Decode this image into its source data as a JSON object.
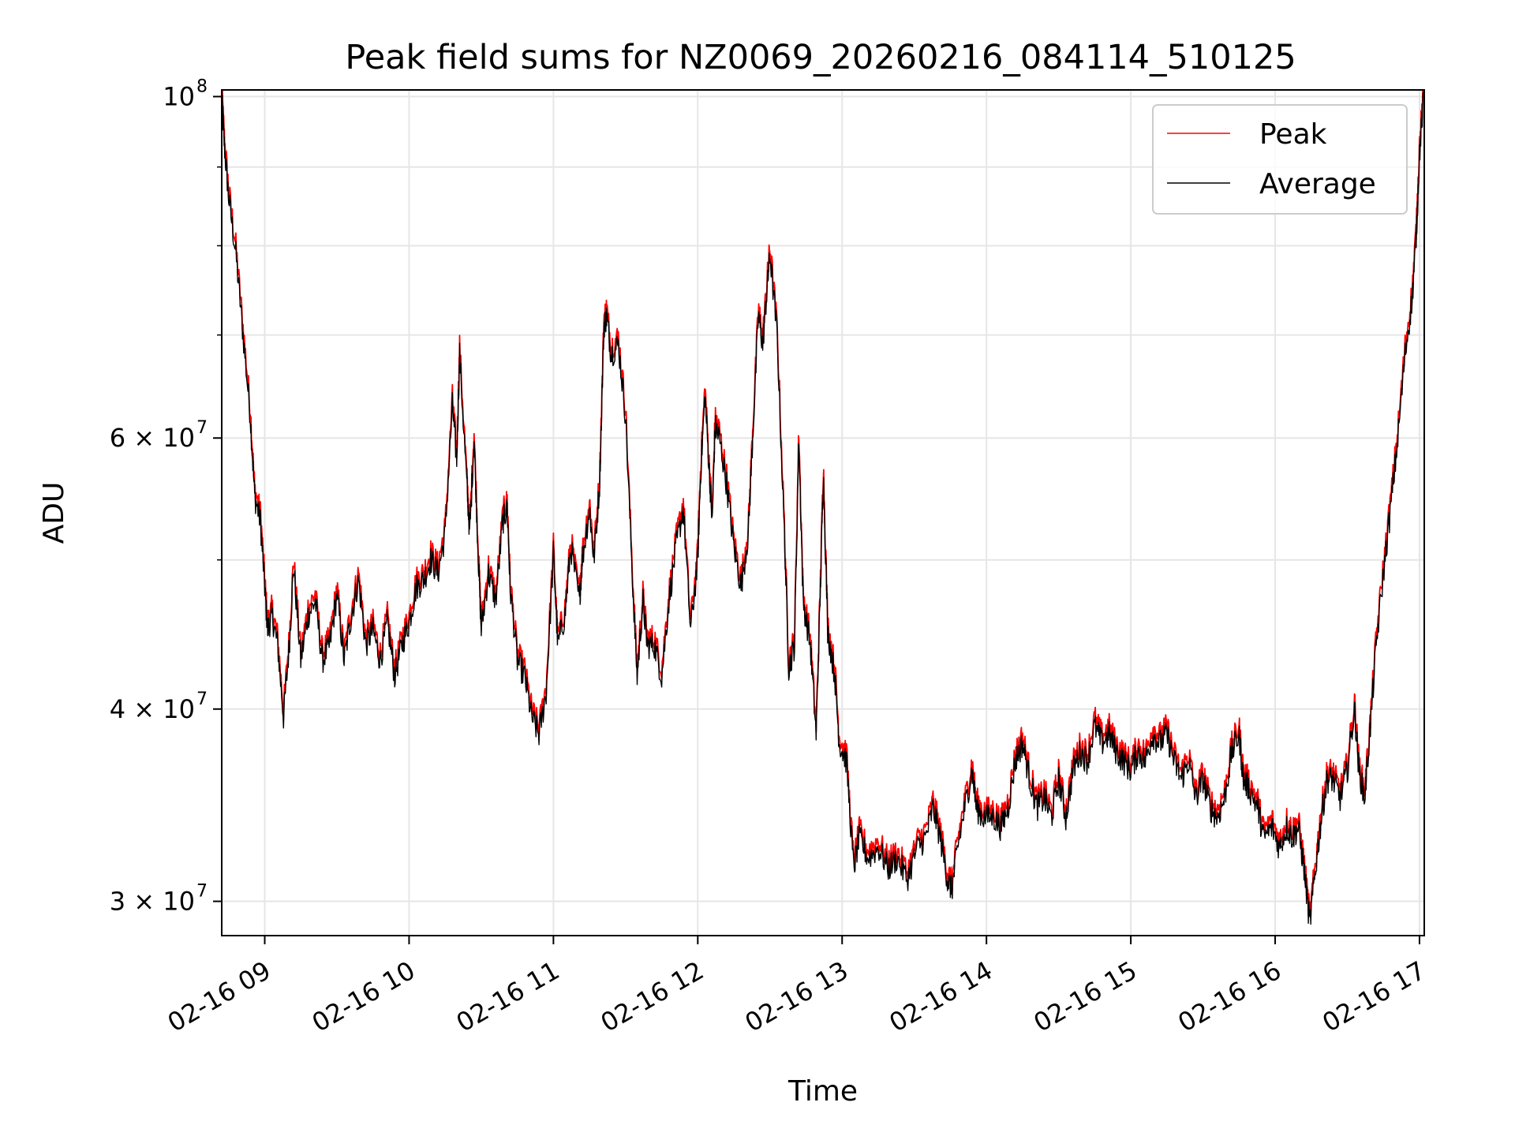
{
  "chart_data": {
    "type": "line",
    "title": "Peak field sums for NZ0069_20260216_084114_510125",
    "xlabel": "Time",
    "ylabel": "ADU",
    "yscale": "log",
    "ylim": [
      28500000,
      101000000
    ],
    "xlim_hours": [
      8.702,
      17.033
    ],
    "grid": true,
    "legend_position": "upper right",
    "x_ticks": [
      {
        "hour": 9,
        "label": "02-16 09"
      },
      {
        "hour": 10,
        "label": "02-16 10"
      },
      {
        "hour": 11,
        "label": "02-16 11"
      },
      {
        "hour": 12,
        "label": "02-16 12"
      },
      {
        "hour": 13,
        "label": "02-16 13"
      },
      {
        "hour": 14,
        "label": "02-16 14"
      },
      {
        "hour": 15,
        "label": "02-16 15"
      },
      {
        "hour": 16,
        "label": "02-16 16"
      },
      {
        "hour": 17,
        "label": "02-16 17"
      }
    ],
    "y_major_ticks": [
      {
        "value": 100000000,
        "base": "10",
        "exp": "8"
      },
      {
        "value": 60000000,
        "base": "6 × 10",
        "exp": "7"
      },
      {
        "value": 40000000,
        "base": "4 × 10",
        "exp": "7"
      },
      {
        "value": 30000000,
        "base": "3 × 10",
        "exp": "7"
      }
    ],
    "y_minor_ticks": [
      90000000,
      80000000,
      70000000,
      50000000
    ],
    "series": [
      {
        "name": "Peak",
        "color": "#ff0000",
        "offset_factor": 1.012
      },
      {
        "name": "Average",
        "color": "#000000",
        "offset_factor": 1.0
      }
    ],
    "average_anchor_points": [
      [
        8.702,
        100000000
      ],
      [
        8.72,
        93000000
      ],
      [
        8.75,
        86000000
      ],
      [
        8.8,
        79000000
      ],
      [
        8.85,
        70000000
      ],
      [
        8.9,
        62000000
      ],
      [
        8.93,
        55000000
      ],
      [
        8.97,
        53000000
      ],
      [
        9.0,
        48000000
      ],
      [
        9.02,
        45000000
      ],
      [
        9.05,
        46000000
      ],
      [
        9.09,
        44000000
      ],
      [
        9.13,
        39500000
      ],
      [
        9.17,
        44000000
      ],
      [
        9.2,
        49500000
      ],
      [
        9.25,
        43000000
      ],
      [
        9.3,
        46000000
      ],
      [
        9.35,
        47000000
      ],
      [
        9.4,
        43000000
      ],
      [
        9.45,
        44000000
      ],
      [
        9.5,
        47500000
      ],
      [
        9.55,
        43000000
      ],
      [
        9.6,
        46000000
      ],
      [
        9.65,
        48500000
      ],
      [
        9.7,
        44000000
      ],
      [
        9.75,
        45000000
      ],
      [
        9.8,
        43000000
      ],
      [
        9.85,
        45500000
      ],
      [
        9.9,
        42000000
      ],
      [
        9.95,
        44000000
      ],
      [
        10.0,
        45500000
      ],
      [
        10.05,
        48000000
      ],
      [
        10.1,
        48500000
      ],
      [
        10.15,
        50000000
      ],
      [
        10.2,
        49000000
      ],
      [
        10.25,
        52000000
      ],
      [
        10.3,
        63000000
      ],
      [
        10.33,
        58000000
      ],
      [
        10.35,
        68000000
      ],
      [
        10.4,
        56000000
      ],
      [
        10.42,
        52000000
      ],
      [
        10.45,
        60000000
      ],
      [
        10.48,
        50000000
      ],
      [
        10.5,
        45000000
      ],
      [
        10.55,
        49000000
      ],
      [
        10.6,
        47000000
      ],
      [
        10.65,
        53000000
      ],
      [
        10.68,
        54000000
      ],
      [
        10.7,
        48000000
      ],
      [
        10.75,
        43000000
      ],
      [
        10.8,
        42000000
      ],
      [
        10.85,
        39500000
      ],
      [
        10.9,
        38500000
      ],
      [
        10.95,
        41000000
      ],
      [
        11.0,
        50500000
      ],
      [
        11.03,
        44000000
      ],
      [
        11.08,
        46000000
      ],
      [
        11.12,
        51000000
      ],
      [
        11.18,
        47000000
      ],
      [
        11.2,
        50000000
      ],
      [
        11.25,
        54000000
      ],
      [
        11.28,
        50000000
      ],
      [
        11.32,
        56000000
      ],
      [
        11.35,
        71000000
      ],
      [
        11.37,
        72000000
      ],
      [
        11.4,
        68000000
      ],
      [
        11.45,
        69000000
      ],
      [
        11.5,
        62000000
      ],
      [
        11.55,
        48000000
      ],
      [
        11.58,
        42000000
      ],
      [
        11.62,
        47000000
      ],
      [
        11.65,
        44000000
      ],
      [
        11.7,
        44000000
      ],
      [
        11.75,
        42000000
      ],
      [
        11.8,
        47000000
      ],
      [
        11.85,
        51000000
      ],
      [
        11.9,
        54000000
      ],
      [
        11.95,
        45000000
      ],
      [
        12.0,
        50000000
      ],
      [
        12.02,
        57000000
      ],
      [
        12.05,
        64000000
      ],
      [
        12.08,
        57000000
      ],
      [
        12.1,
        53000000
      ],
      [
        12.12,
        61000000
      ],
      [
        12.15,
        60000000
      ],
      [
        12.2,
        56000000
      ],
      [
        12.25,
        51000000
      ],
      [
        12.3,
        48000000
      ],
      [
        12.35,
        52000000
      ],
      [
        12.38,
        60000000
      ],
      [
        12.42,
        72000000
      ],
      [
        12.45,
        69000000
      ],
      [
        12.48,
        75000000
      ],
      [
        12.5,
        79000000
      ],
      [
        12.55,
        70000000
      ],
      [
        12.6,
        52000000
      ],
      [
        12.63,
        42500000
      ],
      [
        12.67,
        44000000
      ],
      [
        12.7,
        60000000
      ],
      [
        12.73,
        47000000
      ],
      [
        12.78,
        44000000
      ],
      [
        12.82,
        38500000
      ],
      [
        12.85,
        48000000
      ],
      [
        12.87,
        57000000
      ],
      [
        12.9,
        45000000
      ],
      [
        12.95,
        42000000
      ],
      [
        12.98,
        38000000
      ],
      [
        13.03,
        37000000
      ],
      [
        13.08,
        31500000
      ],
      [
        13.12,
        33000000
      ],
      [
        13.18,
        32000000
      ],
      [
        13.25,
        32500000
      ],
      [
        13.32,
        31500000
      ],
      [
        13.38,
        32000000
      ],
      [
        13.45,
        31000000
      ],
      [
        13.52,
        32500000
      ],
      [
        13.58,
        33000000
      ],
      [
        13.63,
        34500000
      ],
      [
        13.68,
        33000000
      ],
      [
        13.73,
        31000000
      ],
      [
        13.76,
        30500000
      ],
      [
        13.8,
        32500000
      ],
      [
        13.85,
        34500000
      ],
      [
        13.9,
        36500000
      ],
      [
        13.93,
        34500000
      ],
      [
        13.98,
        34000000
      ],
      [
        14.05,
        34000000
      ],
      [
        14.1,
        33500000
      ],
      [
        14.15,
        34500000
      ],
      [
        14.2,
        37000000
      ],
      [
        14.25,
        38000000
      ],
      [
        14.3,
        36000000
      ],
      [
        14.35,
        34500000
      ],
      [
        14.4,
        35000000
      ],
      [
        14.45,
        34000000
      ],
      [
        14.5,
        36000000
      ],
      [
        14.55,
        34000000
      ],
      [
        14.6,
        36500000
      ],
      [
        14.65,
        37500000
      ],
      [
        14.7,
        37000000
      ],
      [
        14.75,
        39000000
      ],
      [
        14.8,
        38000000
      ],
      [
        14.85,
        38500000
      ],
      [
        14.9,
        37500000
      ],
      [
        14.95,
        37000000
      ],
      [
        15.0,
        36500000
      ],
      [
        15.05,
        37500000
      ],
      [
        15.1,
        37000000
      ],
      [
        15.15,
        38500000
      ],
      [
        15.2,
        38000000
      ],
      [
        15.25,
        38500000
      ],
      [
        15.3,
        37000000
      ],
      [
        15.35,
        36000000
      ],
      [
        15.4,
        37000000
      ],
      [
        15.45,
        35000000
      ],
      [
        15.5,
        36000000
      ],
      [
        15.55,
        34500000
      ],
      [
        15.6,
        34000000
      ],
      [
        15.65,
        35000000
      ],
      [
        15.7,
        37500000
      ],
      [
        15.75,
        38500000
      ],
      [
        15.78,
        36000000
      ],
      [
        15.82,
        35500000
      ],
      [
        15.88,
        34500000
      ],
      [
        15.92,
        33000000
      ],
      [
        15.98,
        33500000
      ],
      [
        16.03,
        32500000
      ],
      [
        16.08,
        33500000
      ],
      [
        16.12,
        33000000
      ],
      [
        16.16,
        33500000
      ],
      [
        16.2,
        31500000
      ],
      [
        16.24,
        29000000
      ],
      [
        16.28,
        31500000
      ],
      [
        16.32,
        34000000
      ],
      [
        16.36,
        36000000
      ],
      [
        16.4,
        36000000
      ],
      [
        16.45,
        35000000
      ],
      [
        16.5,
        36500000
      ],
      [
        16.55,
        40000000
      ],
      [
        16.58,
        36500000
      ],
      [
        16.62,
        35000000
      ],
      [
        16.66,
        39000000
      ],
      [
        16.7,
        44000000
      ],
      [
        16.75,
        49000000
      ],
      [
        16.8,
        54000000
      ],
      [
        16.85,
        60000000
      ],
      [
        16.9,
        68000000
      ],
      [
        16.95,
        74000000
      ],
      [
        16.98,
        82000000
      ],
      [
        17.0,
        92000000
      ],
      [
        17.033,
        101000000
      ]
    ]
  },
  "legend": {
    "peak_label": "Peak",
    "average_label": "Average"
  }
}
